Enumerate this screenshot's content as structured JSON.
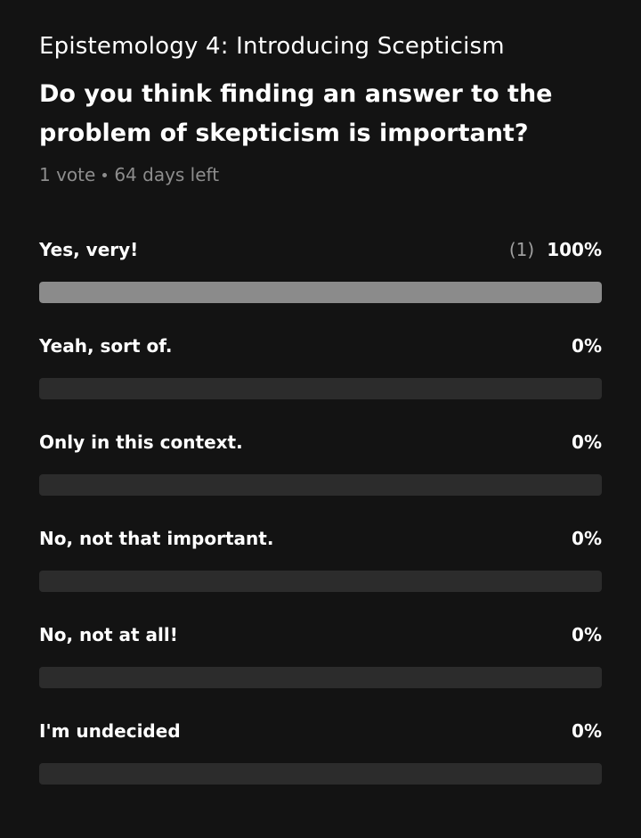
{
  "poll": {
    "header": "Epistemology 4: Introducing Scepticism",
    "question": "Do you think finding an answer to the problem of skepticism is important?",
    "votes": "1 vote",
    "time_left": "64 days left",
    "options": [
      {
        "label": "Yes, very!",
        "count": "(1)",
        "percent": "100%",
        "fill": 1.0
      },
      {
        "label": "Yeah, sort of.",
        "count": "",
        "percent": "0%",
        "fill": 0.0
      },
      {
        "label": "Only in this context.",
        "count": "",
        "percent": "0%",
        "fill": 0.0
      },
      {
        "label": "No, not that important.",
        "count": "",
        "percent": "0%",
        "fill": 0.0
      },
      {
        "label": "No, not at all!",
        "count": "",
        "percent": "0%",
        "fill": 0.0
      },
      {
        "label": "I'm undecided",
        "count": "",
        "percent": "0%",
        "fill": 0.0
      }
    ]
  }
}
